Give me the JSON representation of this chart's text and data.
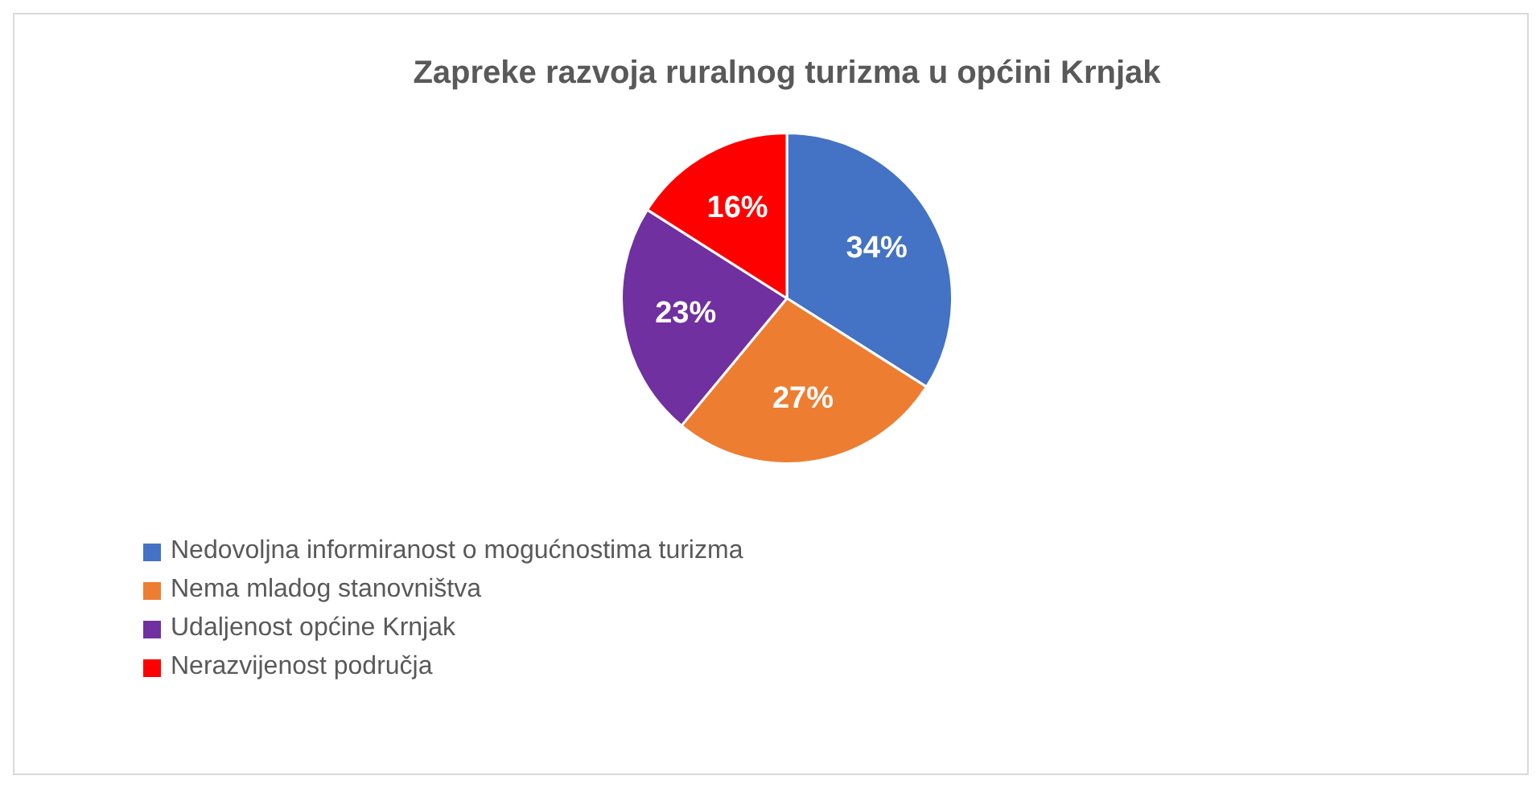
{
  "chart_data": {
    "type": "pie",
    "title": "Zapreke razvoja ruralnog turizma u općini Krnjak",
    "categories": [
      "Nedovoljna informiranost o mogućnostima turizma",
      "Nema mladog stanovništva",
      "Udaljenost općine Krnjak",
      "Nerazvijenost područja"
    ],
    "values": [
      34,
      27,
      23,
      16
    ],
    "colors": [
      "#4472c4",
      "#ed7d31",
      "#7030a0",
      "#ff0000"
    ],
    "value_labels": [
      "34%",
      "27%",
      "23%",
      "16%"
    ],
    "legend": "bottom left"
  }
}
